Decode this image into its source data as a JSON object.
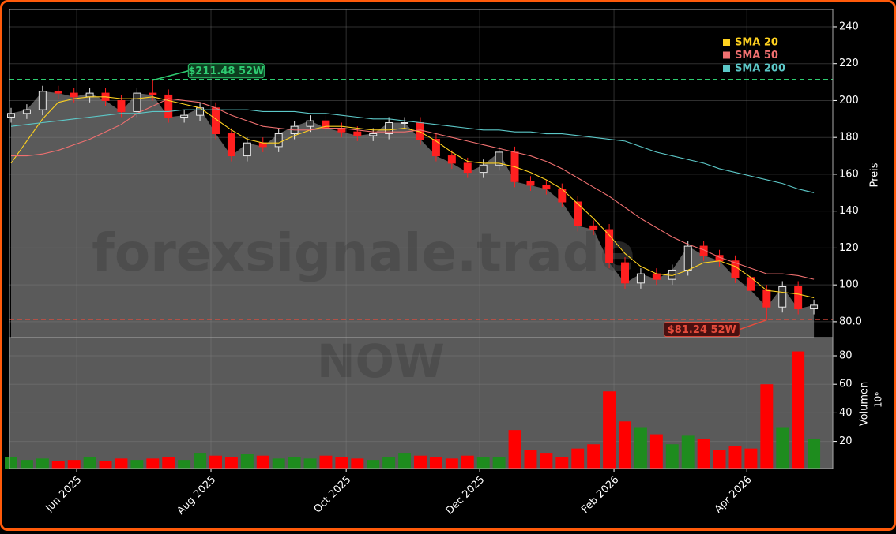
{
  "chart_data": [
    {
      "type": "candlestick",
      "watermark": "forexsignale.trade",
      "subtitle": "NOW",
      "ylabel": "Preis",
      "open": [
        191,
        193,
        195,
        205,
        204,
        202,
        204,
        200,
        194,
        204,
        203,
        191,
        192,
        196,
        182,
        170,
        177,
        175,
        182,
        186,
        189,
        185,
        183,
        181,
        182,
        188,
        188,
        179,
        170,
        166,
        161,
        165,
        172,
        156,
        154,
        152,
        145,
        132,
        130,
        112,
        101,
        106,
        103,
        108,
        121,
        116,
        113,
        104,
        97,
        88,
        99,
        87
      ],
      "high": [
        196,
        198,
        208,
        208,
        207,
        207,
        207,
        203,
        207,
        211,
        206,
        195,
        199,
        199,
        185,
        180,
        180,
        185,
        189,
        192,
        192,
        188,
        186,
        185,
        191,
        191,
        191,
        182,
        173,
        169,
        168,
        175,
        175,
        159,
        157,
        155,
        148,
        135,
        133,
        115,
        109,
        109,
        111,
        124,
        124,
        119,
        116,
        107,
        100,
        102,
        102,
        92
      ],
      "low": [
        188,
        190,
        192,
        201,
        199,
        199,
        197,
        191,
        191,
        200,
        188,
        188,
        189,
        179,
        167,
        167,
        172,
        172,
        179,
        183,
        182,
        180,
        178,
        178,
        179,
        185,
        176,
        167,
        163,
        158,
        158,
        162,
        153,
        151,
        149,
        142,
        129,
        127,
        109,
        98,
        98,
        100,
        100,
        105,
        113,
        110,
        101,
        94,
        81,
        85,
        84,
        84
      ],
      "close": [
        193,
        195,
        205,
        204,
        202,
        204,
        200,
        194,
        204,
        203,
        191,
        192,
        196,
        182,
        170,
        177,
        175,
        182,
        186,
        189,
        185,
        183,
        181,
        182,
        188,
        188,
        179,
        170,
        166,
        161,
        165,
        172,
        156,
        154,
        152,
        145,
        132,
        130,
        112,
        101,
        106,
        103,
        108,
        121,
        116,
        113,
        104,
        97,
        88,
        99,
        87,
        89
      ],
      "up_color": "#e8e8e8",
      "down_color": "#ff2020",
      "area_color": "#5a5a5a",
      "series": [
        {
          "name": "SMA 20",
          "color": "#ffd21f",
          "values": [
            166,
            178,
            190,
            199,
            201,
            202,
            202,
            201,
            201,
            202,
            200,
            198,
            196,
            190,
            184,
            179,
            177,
            177,
            181,
            184,
            186,
            186,
            185,
            184,
            184,
            185,
            183,
            178,
            172,
            167,
            166,
            166,
            164,
            161,
            157,
            152,
            144,
            136,
            127,
            117,
            110,
            106,
            105,
            108,
            112,
            113,
            110,
            104,
            97,
            96,
            95,
            93
          ]
        },
        {
          "name": "SMA 50",
          "color": "#f07070",
          "values": [
            170,
            170,
            171,
            173,
            176,
            179,
            183,
            187,
            193,
            197,
            201,
            200,
            199,
            196,
            192,
            189,
            186,
            185,
            184,
            184,
            185,
            185,
            184,
            183,
            183,
            183,
            184,
            182,
            180,
            178,
            176,
            174,
            172,
            170,
            167,
            163,
            158,
            153,
            148,
            142,
            136,
            131,
            126,
            122,
            119,
            115,
            112,
            109,
            106,
            106,
            105,
            103
          ]
        },
        {
          "name": "SMA 200",
          "color": "#5cc8c8",
          "values": [
            186,
            187,
            188,
            189,
            190,
            191,
            192,
            193,
            193,
            194,
            194,
            195,
            195,
            195,
            195,
            195,
            194,
            194,
            194,
            193,
            193,
            192,
            191,
            190,
            190,
            189,
            188,
            187,
            186,
            185,
            184,
            184,
            183,
            183,
            182,
            182,
            181,
            180,
            179,
            178,
            175,
            172,
            170,
            168,
            166,
            163,
            161,
            159,
            157,
            155,
            152,
            150
          ]
        }
      ],
      "annotations": [
        {
          "text": "$211.48 52W",
          "value": 211.48,
          "color": "#2ecc71"
        },
        {
          "text": "$81.24 52W",
          "value": 81.24,
          "color": "#e74c3c"
        }
      ],
      "xlim": [
        -0.1,
        52.2
      ],
      "ylim": [
        71.4,
        249.4
      ],
      "yticks": [
        {
          "value": 80,
          "label": "80.0"
        },
        100,
        120,
        140,
        160,
        180,
        200,
        220,
        240
      ],
      "grid": true
    },
    {
      "type": "bar",
      "ylabel": "Volumen",
      "yunit": "10⁶",
      "values": [
        9,
        7,
        8,
        6,
        7,
        9,
        6,
        8,
        7,
        8,
        9,
        7,
        12,
        10,
        9,
        11,
        10,
        8,
        9,
        8,
        10,
        9,
        8,
        7,
        9,
        12,
        10,
        9,
        8,
        10,
        9,
        9,
        28,
        14,
        12,
        9,
        15,
        18,
        55,
        34,
        30,
        25,
        18,
        24,
        22,
        14,
        17,
        15,
        60,
        30,
        83,
        22
      ],
      "up_color": "#1e8c1e",
      "down_color": "#ff0000",
      "xlim": [
        -0.1,
        52.2
      ],
      "ylim": [
        1,
        92.7
      ],
      "yticks": [
        20,
        40,
        60,
        80
      ],
      "xticks": [
        {
          "value": 4.17,
          "label": "Jun 2025"
        },
        {
          "value": 12.7,
          "label": "Aug 2025"
        },
        {
          "value": 21.29,
          "label": "Oct 2025"
        },
        {
          "value": 29.77,
          "label": "Dec 2025"
        },
        {
          "value": 38.3,
          "label": "Feb 2026"
        },
        {
          "value": 46.74,
          "label": "Apr 2026"
        }
      ],
      "grid": true
    }
  ]
}
